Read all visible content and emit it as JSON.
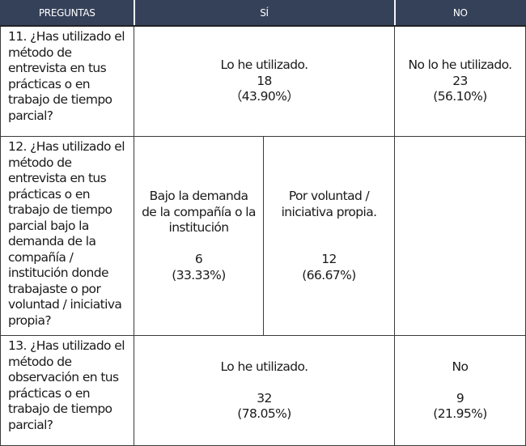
{
  "header": {
    "col_questions": "PREGUNTAS",
    "col_yes": "SÍ",
    "col_no": "NO"
  },
  "colors": {
    "header_background": "#354159",
    "header_text": "#ffffff",
    "border": "#3a3a3a"
  },
  "rows": [
    {
      "question": "11. ¿Has utilizado el método de entrevista en tus prácticas o en trabajo de tiempo parcial?",
      "yes": {
        "label": "Lo he utilizado.",
        "count": "18",
        "percent": "（43.90%）"
      },
      "no": {
        "label": "No lo he utilizado.",
        "count": "23",
        "percent": "(56.10%)"
      }
    },
    {
      "question": "12. ¿Has utilizado el método de entrevista en tus prácticas o en trabajo de tiempo parcial bajo la demanda de la compañía / institución donde trabajaste o por voluntad / iniciativa propia?",
      "yes_option_1": {
        "label": "Bajo la demanda de la compañía o la institución",
        "count": "6",
        "percent": "(33.33%)"
      },
      "yes_option_2": {
        "label": "Por voluntad / iniciativa propia.",
        "count": "12",
        "percent": "(66.67%)"
      },
      "no": {
        "label": ""
      }
    },
    {
      "question": "13. ¿Has utilizado el método de observación en tus prácticas o en trabajo de tiempo parcial?",
      "yes": {
        "label": "Lo he utilizado.",
        "count": "32",
        "percent": "(78.05%)"
      },
      "no": {
        "label": "No",
        "count": "9",
        "percent": "(21.95%)"
      }
    }
  ]
}
